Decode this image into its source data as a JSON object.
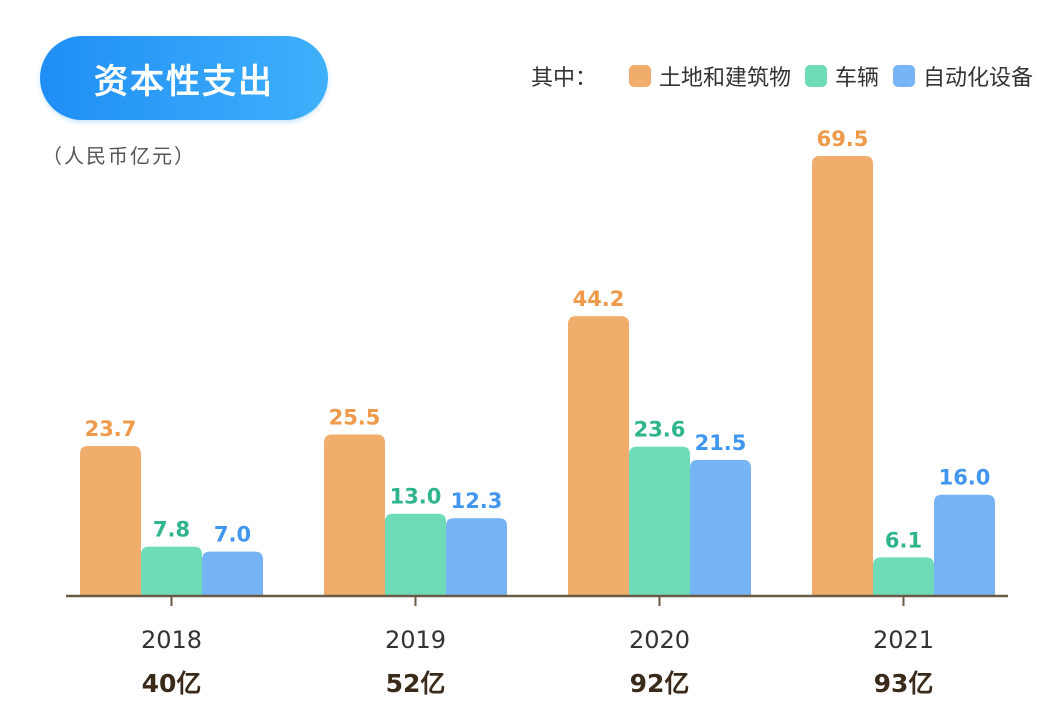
{
  "title": "资本性支出",
  "unit_label": "（人民币亿元）",
  "legend": {
    "prefix": "其中：",
    "items": [
      {
        "label": "土地和建筑物",
        "color": "#f0ad6b"
      },
      {
        "label": "车辆",
        "color": "#6fdcb8"
      },
      {
        "label": "自动化设备",
        "color": "#77b4f5"
      }
    ]
  },
  "chart_data": {
    "type": "bar",
    "categories": [
      "2018",
      "2019",
      "2020",
      "2021"
    ],
    "totals": [
      "40亿",
      "52亿",
      "92亿",
      "93亿"
    ],
    "series": [
      {
        "name": "土地和建筑物",
        "color": "#f0ad6b",
        "label_color": "#ef9a4a",
        "values": [
          23.7,
          25.5,
          44.2,
          69.5
        ]
      },
      {
        "name": "车辆",
        "color": "#6fdcb8",
        "label_color": "#2eb58b",
        "values": [
          7.8,
          13.0,
          23.6,
          6.1
        ]
      },
      {
        "name": "自动化设备",
        "color": "#77b4f5",
        "label_color": "#4196ef",
        "values": [
          7.0,
          12.3,
          21.5,
          16.0
        ]
      }
    ],
    "ylim": [
      0,
      69.5
    ],
    "axis_color": "#6b5a44"
  }
}
